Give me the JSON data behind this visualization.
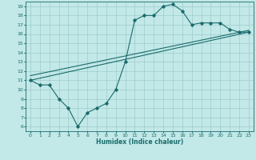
{
  "title": "",
  "xlabel": "Humidex (Indice chaleur)",
  "ylabel": "",
  "xlim": [
    -0.5,
    23.5
  ],
  "ylim": [
    5.5,
    19.5
  ],
  "xticks": [
    0,
    1,
    2,
    3,
    4,
    5,
    6,
    7,
    8,
    9,
    10,
    11,
    12,
    13,
    14,
    15,
    16,
    17,
    18,
    19,
    20,
    21,
    22,
    23
  ],
  "yticks": [
    6,
    7,
    8,
    9,
    10,
    11,
    12,
    13,
    14,
    15,
    16,
    17,
    18,
    19
  ],
  "bg_color": "#c2e8e8",
  "grid_color": "#a0cccc",
  "line_color": "#1a6b6b",
  "line1_x": [
    0,
    1,
    2,
    3,
    4,
    5,
    6,
    7,
    8,
    9,
    10,
    11,
    12,
    13,
    14,
    15,
    16,
    17,
    18,
    19,
    20,
    21,
    22,
    23
  ],
  "line1_y": [
    11.0,
    10.5,
    10.5,
    9.0,
    8.0,
    6.0,
    7.5,
    8.0,
    8.5,
    10.0,
    13.0,
    17.5,
    18.0,
    18.0,
    19.0,
    19.2,
    18.5,
    17.0,
    17.2,
    17.2,
    17.2,
    16.5,
    16.2,
    16.2
  ],
  "line2_x": [
    0,
    23
  ],
  "line2_y": [
    11.0,
    16.2
  ],
  "line3_x": [
    0,
    23
  ],
  "line3_y": [
    11.5,
    16.4
  ]
}
